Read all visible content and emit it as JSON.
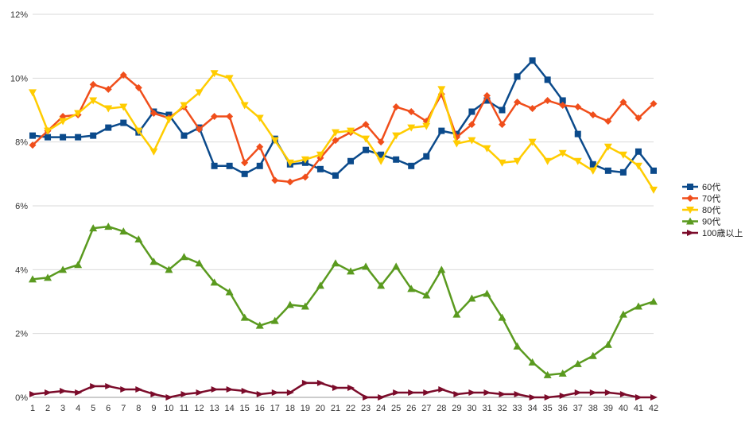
{
  "chart_data": {
    "type": "line",
    "title": "",
    "xlabel": "",
    "ylabel": "",
    "x": [
      1,
      2,
      3,
      4,
      5,
      6,
      7,
      8,
      9,
      10,
      11,
      12,
      13,
      14,
      15,
      16,
      17,
      18,
      19,
      20,
      21,
      22,
      23,
      24,
      25,
      26,
      27,
      28,
      29,
      30,
      31,
      32,
      33,
      34,
      35,
      36,
      37,
      38,
      39,
      40,
      41,
      42
    ],
    "ylim": [
      0,
      12
    ],
    "yticks": [
      0,
      2,
      4,
      6,
      8,
      10,
      12
    ],
    "ytick_labels": [
      "0%",
      "2%",
      "4%",
      "6%",
      "8%",
      "10%",
      "12%"
    ],
    "grid": "horizontal",
    "legend": "right",
    "series": [
      {
        "name": "60代",
        "color": "#0b4a8b",
        "marker": "square",
        "values": [
          8.2,
          8.15,
          8.15,
          8.15,
          8.2,
          8.45,
          8.6,
          8.3,
          8.95,
          8.85,
          8.2,
          8.45,
          7.25,
          7.25,
          7.0,
          7.25,
          8.1,
          7.3,
          7.35,
          7.15,
          6.95,
          7.4,
          7.75,
          7.6,
          7.45,
          7.25,
          7.55,
          8.35,
          8.25,
          8.95,
          9.3,
          9.0,
          10.05,
          10.55,
          9.95,
          9.3,
          8.25,
          7.3,
          7.1,
          7.05,
          7.7,
          7.1
        ]
      },
      {
        "name": "70代",
        "color": "#f04e1b",
        "marker": "diamond",
        "values": [
          7.9,
          8.35,
          8.8,
          8.85,
          9.8,
          9.65,
          10.1,
          9.7,
          8.9,
          8.75,
          9.1,
          8.4,
          8.8,
          8.8,
          7.35,
          7.85,
          6.8,
          6.75,
          6.9,
          7.5,
          8.05,
          8.3,
          8.55,
          8.0,
          9.1,
          8.95,
          8.65,
          9.5,
          8.15,
          8.55,
          9.45,
          8.55,
          9.25,
          9.05,
          9.3,
          9.15,
          9.1,
          8.85,
          8.65,
          9.25,
          8.75,
          9.2
        ]
      },
      {
        "name": "80代",
        "color": "#ffcc00",
        "marker": "triangle-down",
        "values": [
          9.55,
          8.35,
          8.65,
          8.9,
          9.3,
          9.05,
          9.1,
          8.35,
          7.7,
          8.7,
          9.15,
          9.55,
          10.15,
          10.0,
          9.15,
          8.75,
          8.05,
          7.35,
          7.45,
          7.6,
          8.3,
          8.35,
          8.1,
          7.4,
          8.2,
          8.45,
          8.5,
          9.65,
          7.95,
          8.05,
          7.8,
          7.35,
          7.4,
          8.0,
          7.4,
          7.65,
          7.4,
          7.1,
          7.85,
          7.6,
          7.25,
          6.5
        ]
      },
      {
        "name": "90代",
        "color": "#5a9a1f",
        "marker": "triangle-up",
        "values": [
          3.7,
          3.75,
          4.0,
          4.15,
          5.3,
          5.35,
          5.2,
          4.95,
          4.25,
          4.0,
          4.4,
          4.2,
          3.6,
          3.3,
          2.5,
          2.25,
          2.4,
          2.9,
          2.85,
          3.5,
          4.2,
          3.95,
          4.1,
          3.5,
          4.1,
          3.4,
          3.2,
          4.0,
          2.6,
          3.1,
          3.25,
          2.5,
          1.6,
          1.1,
          0.7,
          0.75,
          1.05,
          1.3,
          1.65,
          2.6,
          2.85,
          3.0
        ]
      },
      {
        "name": "100歳以上",
        "color": "#7b0b2a",
        "marker": "arrow-right",
        "values": [
          0.1,
          0.15,
          0.2,
          0.15,
          0.35,
          0.35,
          0.25,
          0.25,
          0.1,
          0.0,
          0.1,
          0.15,
          0.25,
          0.25,
          0.2,
          0.1,
          0.15,
          0.15,
          0.45,
          0.45,
          0.3,
          0.3,
          0.0,
          0.0,
          0.15,
          0.15,
          0.15,
          0.25,
          0.1,
          0.15,
          0.15,
          0.1,
          0.1,
          0.0,
          0.0,
          0.05,
          0.15,
          0.15,
          0.15,
          0.1,
          0.0,
          0.0
        ]
      }
    ]
  }
}
